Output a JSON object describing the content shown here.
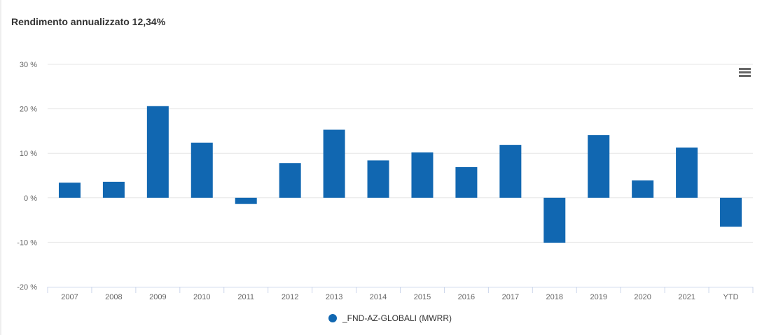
{
  "title": "Rendimento annualizzato 12,34%",
  "menu_icon": "hamburger-menu-icon",
  "chart_data": {
    "type": "bar",
    "title": "Rendimento annualizzato 12,34%",
    "xlabel": "",
    "ylabel": "",
    "categories": [
      "2007",
      "2008",
      "2009",
      "2010",
      "2011",
      "2012",
      "2013",
      "2014",
      "2015",
      "2016",
      "2017",
      "2018",
      "2019",
      "2020",
      "2021",
      "YTD"
    ],
    "series": [
      {
        "name": "_FND-AZ-GLOBALI (MWRR)",
        "color": "#1167b1",
        "values": [
          3.4,
          3.6,
          20.6,
          12.4,
          -1.4,
          7.8,
          15.3,
          8.4,
          10.2,
          6.9,
          11.9,
          -10.1,
          14.1,
          3.9,
          11.3,
          -6.5
        ]
      }
    ],
    "ylim": [
      -20,
      30
    ],
    "yticks": [
      30,
      20,
      10,
      0,
      -10,
      -20
    ],
    "ytick_labels": [
      "30 %",
      "20 %",
      "10 %",
      "0 %",
      "-10 %",
      "-20 %"
    ],
    "grid": true,
    "legend": "bottom-center"
  }
}
